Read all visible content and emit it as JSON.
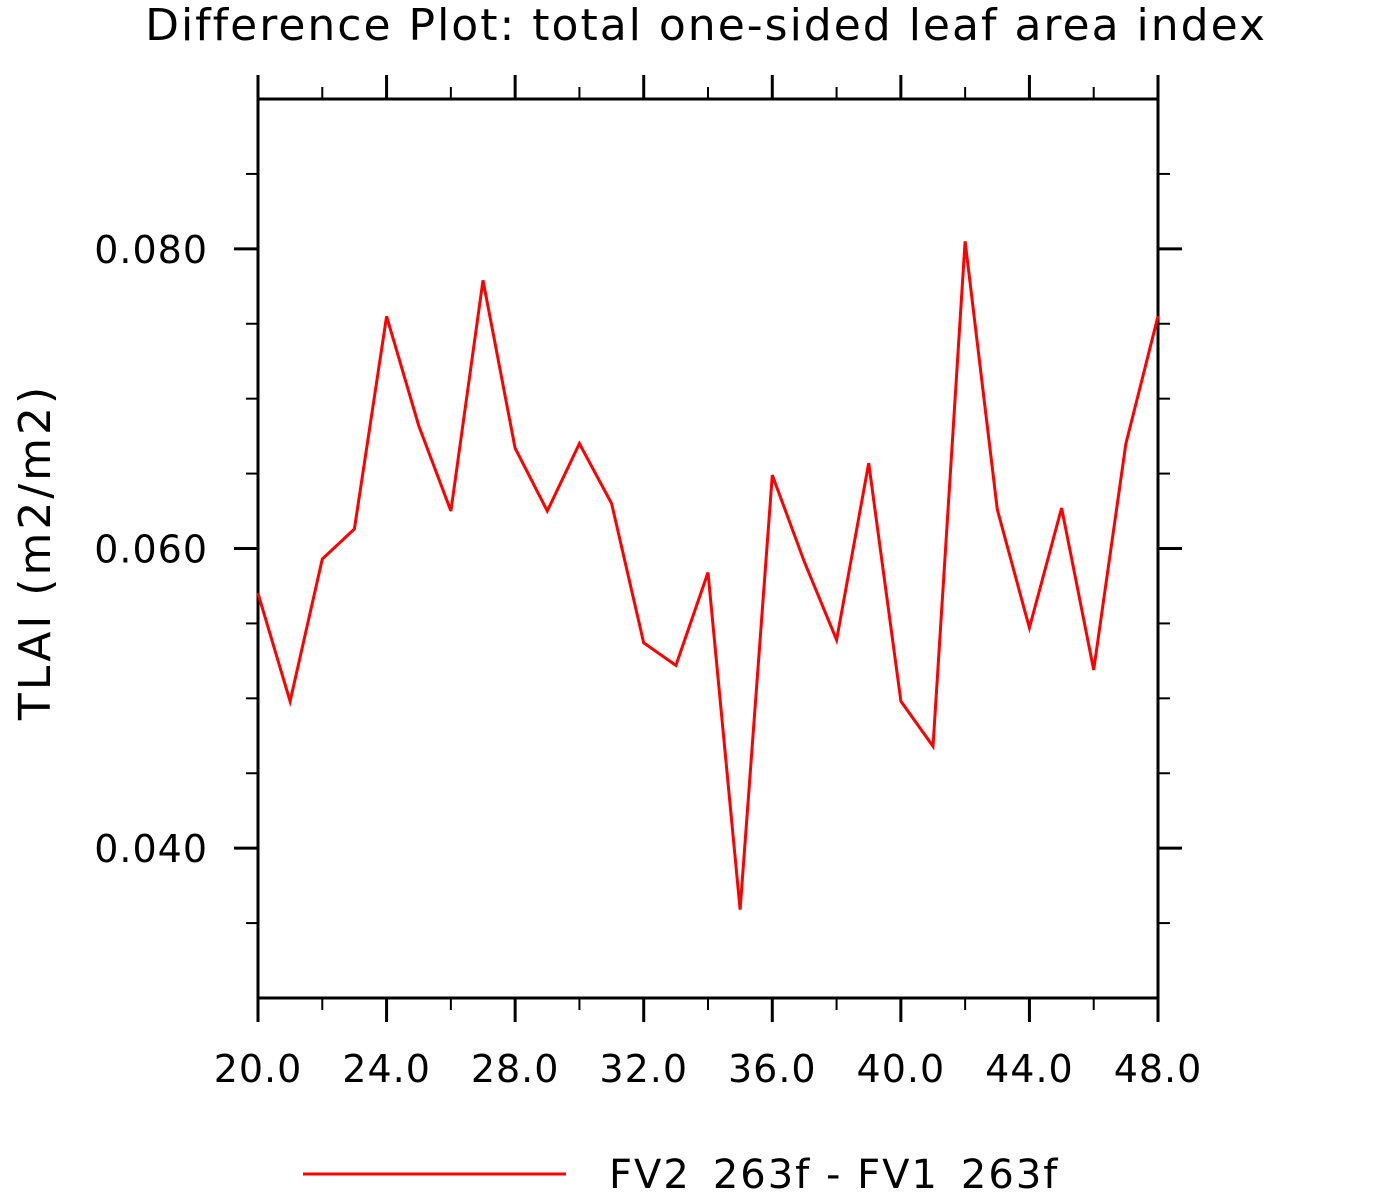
{
  "chart_data": {
    "type": "line",
    "title": "Difference Plot: total one-sided leaf area index",
    "xlabel": "",
    "ylabel": "TLAI  (m2/m2)",
    "xlim": [
      20,
      48
    ],
    "ylim": [
      0.03,
      0.09
    ],
    "x_ticks": [
      20,
      24,
      28,
      32,
      36,
      40,
      44,
      48
    ],
    "x_tick_labels": [
      "20.0",
      "24.0",
      "28.0",
      "32.0",
      "36.0",
      "40.0",
      "44.0",
      "48.0"
    ],
    "x_minor_ticks": [
      22,
      26,
      30,
      34,
      38,
      42,
      46
    ],
    "y_ticks": [
      0.04,
      0.06,
      0.08
    ],
    "y_tick_labels": [
      "0.040",
      "0.060",
      "0.080"
    ],
    "y_minor_ticks": [
      0.035,
      0.045,
      0.05,
      0.055,
      0.065,
      0.07,
      0.075,
      0.085
    ],
    "grid": false,
    "legend_position": "bottom",
    "series": [
      {
        "name": "FV2_263f - FV1_263f",
        "color": "#ff0000",
        "x": [
          20,
          21,
          22,
          23,
          24,
          25,
          26,
          27,
          28,
          29,
          30,
          31,
          32,
          33,
          34,
          35,
          36,
          37,
          38,
          39,
          40,
          41,
          42,
          43,
          44,
          45,
          46,
          47,
          48
        ],
        "y": [
          0.057,
          0.0498,
          0.0593,
          0.0613,
          0.0755,
          0.0682,
          0.0625,
          0.0779,
          0.0667,
          0.0625,
          0.067,
          0.063,
          0.0537,
          0.0522,
          0.0584,
          0.0359,
          0.0649,
          0.0591,
          0.0539,
          0.0657,
          0.0498,
          0.0468,
          0.0805,
          0.0626,
          0.0547,
          0.0627,
          0.0519,
          0.067,
          0.0755
        ]
      }
    ]
  }
}
